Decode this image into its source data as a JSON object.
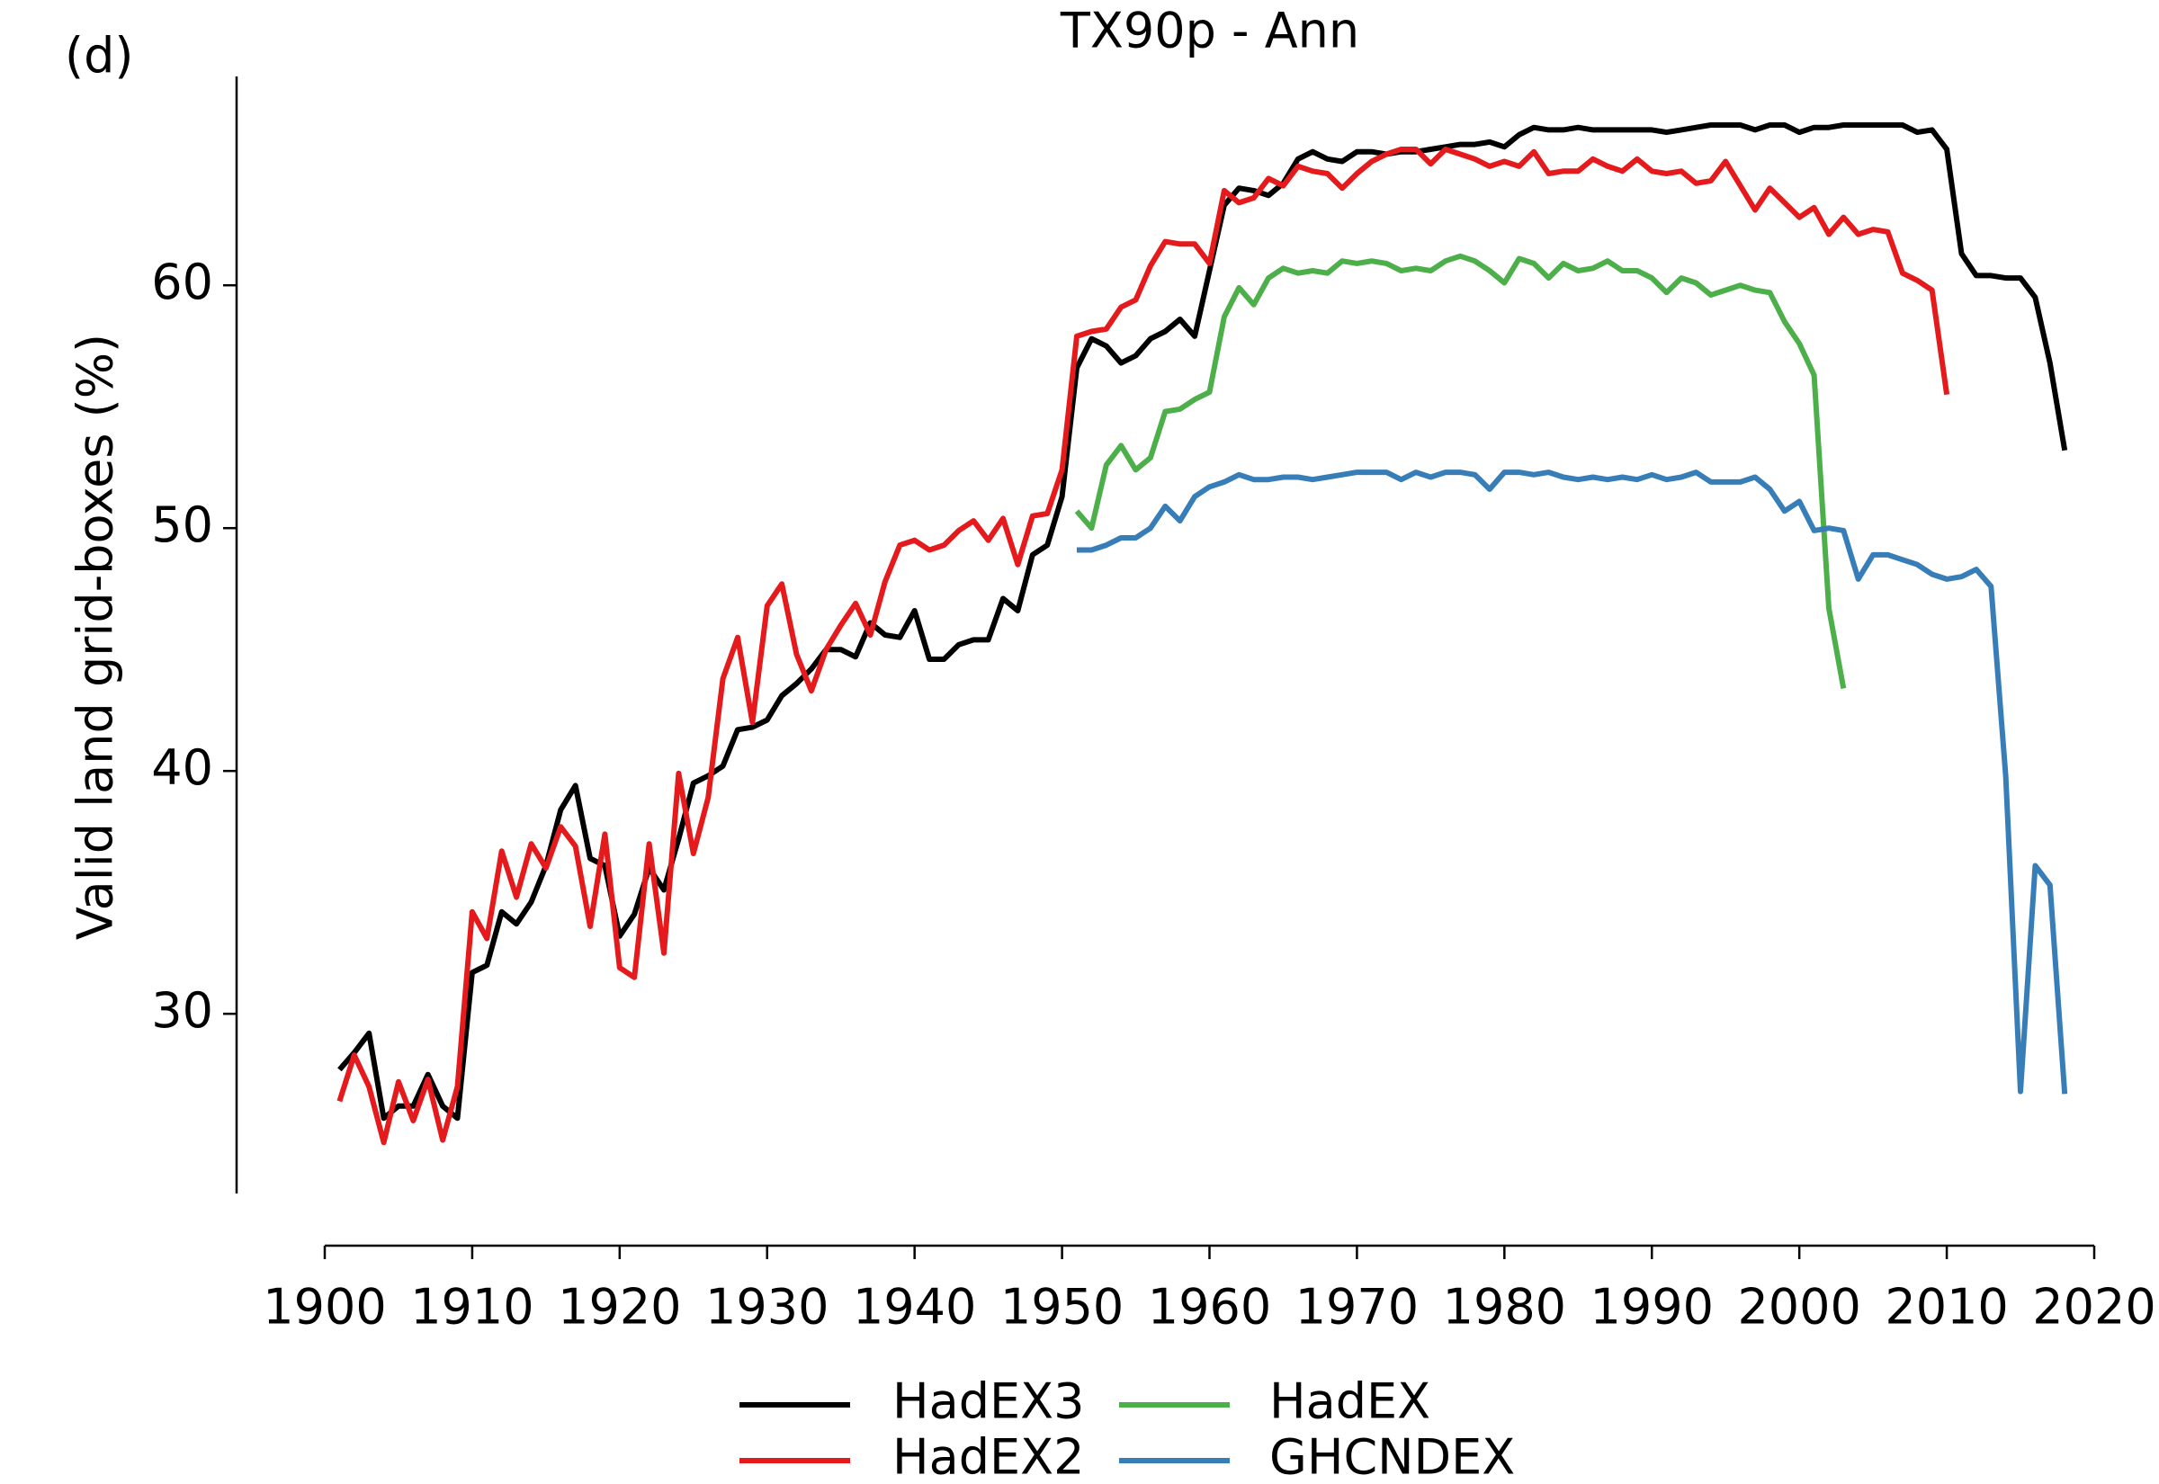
{
  "chart_data": {
    "type": "line",
    "title": "TX90p - Ann",
    "annotation": "(d)",
    "ylabel": "Valid land grid-boxes (%)",
    "xlim": [
      1900,
      2020
    ],
    "xticks": [
      1900,
      1910,
      1920,
      1930,
      1940,
      1950,
      1960,
      1970,
      1980,
      1990,
      2000,
      2010,
      2020
    ],
    "ylim": [
      22.6,
      68.6
    ],
    "yticks": [
      30,
      40,
      50,
      60
    ],
    "grid": false,
    "legend": "lower center",
    "series": [
      {
        "name": "HadEX3",
        "color": "#000000",
        "x": [
          1901,
          1902,
          1903,
          1904,
          1905,
          1906,
          1907,
          1908,
          1909,
          1910,
          1911,
          1912,
          1913,
          1914,
          1915,
          1916,
          1917,
          1918,
          1919,
          1920,
          1921,
          1922,
          1923,
          1924,
          1925,
          1926,
          1927,
          1928,
          1929,
          1930,
          1931,
          1932,
          1933,
          1934,
          1935,
          1936,
          1937,
          1938,
          1939,
          1940,
          1941,
          1942,
          1943,
          1944,
          1945,
          1946,
          1947,
          1948,
          1949,
          1950,
          1951,
          1952,
          1953,
          1954,
          1955,
          1956,
          1957,
          1958,
          1959,
          1960,
          1961,
          1962,
          1963,
          1964,
          1965,
          1966,
          1967,
          1968,
          1969,
          1970,
          1971,
          1972,
          1973,
          1974,
          1975,
          1976,
          1977,
          1978,
          1979,
          1980,
          1981,
          1982,
          1983,
          1984,
          1985,
          1986,
          1987,
          1988,
          1989,
          1990,
          1991,
          1992,
          1993,
          1994,
          1995,
          1996,
          1997,
          1998,
          1999,
          2000,
          2001,
          2002,
          2003,
          2004,
          2005,
          2006,
          2007,
          2008,
          2009,
          2010,
          2011,
          2012,
          2013,
          2014,
          2015,
          2016,
          2017,
          2018
        ],
        "values": [
          27.7,
          28.4,
          29.2,
          25.7,
          26.2,
          26.2,
          27.5,
          26.2,
          25.7,
          31.7,
          32.0,
          34.2,
          33.7,
          34.6,
          36.1,
          38.4,
          39.4,
          36.4,
          36.1,
          33.2,
          34.1,
          36.0,
          35.1,
          37.2,
          39.5,
          39.8,
          40.2,
          41.7,
          41.8,
          42.1,
          43.1,
          43.6,
          44.2,
          45.0,
          45.0,
          44.7,
          46.1,
          45.6,
          45.5,
          46.6,
          44.6,
          44.6,
          45.2,
          45.4,
          45.4,
          47.1,
          46.6,
          48.9,
          49.3,
          51.3,
          56.6,
          57.8,
          57.5,
          56.8,
          57.1,
          57.8,
          58.1,
          58.6,
          57.9,
          60.6,
          63.3,
          64.0,
          63.9,
          63.7,
          64.2,
          65.2,
          65.5,
          65.2,
          65.1,
          65.5,
          65.5,
          65.4,
          65.5,
          65.5,
          65.6,
          65.7,
          65.8,
          65.8,
          65.9,
          65.7,
          66.2,
          66.5,
          66.4,
          66.4,
          66.5,
          66.4,
          66.4,
          66.4,
          66.4,
          66.4,
          66.3,
          66.4,
          66.5,
          66.6,
          66.6,
          66.6,
          66.4,
          66.6,
          66.6,
          66.3,
          66.5,
          66.5,
          66.6,
          66.6,
          66.6,
          66.6,
          66.6,
          66.3,
          66.4,
          65.6,
          61.3,
          60.4,
          60.4,
          60.3,
          60.3,
          59.5,
          56.8,
          53.2
        ]
      },
      {
        "name": "HadEX2",
        "color": "#e41a1c",
        "x": [
          1901,
          1902,
          1903,
          1904,
          1905,
          1906,
          1907,
          1908,
          1909,
          1910,
          1911,
          1912,
          1913,
          1914,
          1915,
          1916,
          1917,
          1918,
          1919,
          1920,
          1921,
          1922,
          1923,
          1924,
          1925,
          1926,
          1927,
          1928,
          1929,
          1930,
          1931,
          1932,
          1933,
          1934,
          1935,
          1936,
          1937,
          1938,
          1939,
          1940,
          1941,
          1942,
          1943,
          1944,
          1945,
          1946,
          1947,
          1948,
          1949,
          1950,
          1951,
          1952,
          1953,
          1954,
          1955,
          1956,
          1957,
          1958,
          1959,
          1960,
          1961,
          1962,
          1963,
          1964,
          1965,
          1966,
          1967,
          1968,
          1969,
          1970,
          1971,
          1972,
          1973,
          1974,
          1975,
          1976,
          1977,
          1978,
          1979,
          1980,
          1981,
          1982,
          1983,
          1984,
          1985,
          1986,
          1987,
          1988,
          1989,
          1990,
          1991,
          1992,
          1993,
          1994,
          1995,
          1996,
          1997,
          1998,
          1999,
          2000,
          2001,
          2002,
          2003,
          2004,
          2005,
          2006,
          2007,
          2008,
          2009,
          2010
        ],
        "values": [
          26.4,
          28.3,
          27.0,
          24.7,
          27.2,
          25.6,
          27.3,
          24.8,
          27.0,
          34.2,
          33.1,
          36.7,
          34.8,
          37.0,
          36.0,
          37.7,
          36.9,
          33.6,
          37.4,
          31.9,
          31.5,
          37.0,
          32.5,
          39.9,
          36.6,
          38.9,
          43.8,
          45.5,
          42.0,
          46.8,
          47.7,
          44.8,
          43.3,
          45.0,
          46.0,
          46.9,
          45.6,
          47.8,
          49.3,
          49.5,
          49.1,
          49.3,
          49.9,
          50.3,
          49.5,
          50.4,
          48.5,
          50.5,
          50.6,
          52.4,
          57.9,
          58.1,
          58.2,
          59.1,
          59.4,
          60.8,
          61.8,
          61.7,
          61.7,
          60.9,
          63.9,
          63.4,
          63.6,
          64.4,
          64.1,
          64.9,
          64.7,
          64.6,
          64.0,
          64.6,
          65.1,
          65.4,
          65.6,
          65.6,
          65.0,
          65.6,
          65.4,
          65.2,
          64.9,
          65.1,
          64.9,
          65.5,
          64.6,
          64.7,
          64.7,
          65.2,
          64.9,
          64.7,
          65.2,
          64.7,
          64.6,
          64.7,
          64.2,
          64.3,
          65.1,
          64.1,
          63.1,
          64.0,
          63.4,
          62.8,
          63.2,
          62.1,
          62.8,
          62.1,
          62.3,
          62.2,
          60.5,
          60.2,
          59.8,
          55.5
        ]
      },
      {
        "name": "HadEX",
        "color": "#4daf4a",
        "x": [
          1951,
          1952,
          1953,
          1954,
          1955,
          1956,
          1957,
          1958,
          1959,
          1960,
          1961,
          1962,
          1963,
          1964,
          1965,
          1966,
          1967,
          1968,
          1969,
          1970,
          1971,
          1972,
          1973,
          1974,
          1975,
          1976,
          1977,
          1978,
          1979,
          1980,
          1981,
          1982,
          1983,
          1984,
          1985,
          1986,
          1987,
          1988,
          1989,
          1990,
          1991,
          1992,
          1993,
          1994,
          1995,
          1996,
          1997,
          1998,
          1999,
          2000,
          2001,
          2002,
          2003
        ],
        "values": [
          50.7,
          50.0,
          52.6,
          53.4,
          52.4,
          52.9,
          54.8,
          54.9,
          55.3,
          55.6,
          58.7,
          59.9,
          59.2,
          60.3,
          60.7,
          60.5,
          60.6,
          60.5,
          61.0,
          60.9,
          61.0,
          60.9,
          60.6,
          60.7,
          60.6,
          61.0,
          61.2,
          61.0,
          60.6,
          60.1,
          61.1,
          60.9,
          60.3,
          60.9,
          60.6,
          60.7,
          61.0,
          60.6,
          60.6,
          60.3,
          59.7,
          60.3,
          60.1,
          59.6,
          59.8,
          60.0,
          59.8,
          59.7,
          58.5,
          57.6,
          56.3,
          46.7,
          43.4
        ]
      },
      {
        "name": "GHCNDEX",
        "color": "#377eb8",
        "x": [
          1951,
          1952,
          1953,
          1954,
          1955,
          1956,
          1957,
          1958,
          1959,
          1960,
          1961,
          1962,
          1963,
          1964,
          1965,
          1966,
          1967,
          1968,
          1969,
          1970,
          1971,
          1972,
          1973,
          1974,
          1975,
          1976,
          1977,
          1978,
          1979,
          1980,
          1981,
          1982,
          1983,
          1984,
          1985,
          1986,
          1987,
          1988,
          1989,
          1990,
          1991,
          1992,
          1993,
          1994,
          1995,
          1996,
          1997,
          1998,
          1999,
          2000,
          2001,
          2002,
          2003,
          2004,
          2005,
          2006,
          2007,
          2008,
          2009,
          2010,
          2011,
          2012,
          2013,
          2014,
          2015,
          2016,
          2017,
          2018
        ],
        "values": [
          49.1,
          49.1,
          49.3,
          49.6,
          49.6,
          50.0,
          50.9,
          50.3,
          51.3,
          51.7,
          51.9,
          52.2,
          52.0,
          52.0,
          52.1,
          52.1,
          52.0,
          52.1,
          52.2,
          52.3,
          52.3,
          52.3,
          52.0,
          52.3,
          52.1,
          52.3,
          52.3,
          52.2,
          51.6,
          52.3,
          52.3,
          52.2,
          52.3,
          52.1,
          52.0,
          52.1,
          52.0,
          52.1,
          52.0,
          52.2,
          52.0,
          52.1,
          52.3,
          51.9,
          51.9,
          51.9,
          52.1,
          51.6,
          50.7,
          51.1,
          49.9,
          50.0,
          49.9,
          47.9,
          48.9,
          48.9,
          48.7,
          48.5,
          48.1,
          47.9,
          48.0,
          48.3,
          47.6,
          39.8,
          26.8,
          36.1,
          35.3,
          26.7
        ]
      }
    ]
  }
}
